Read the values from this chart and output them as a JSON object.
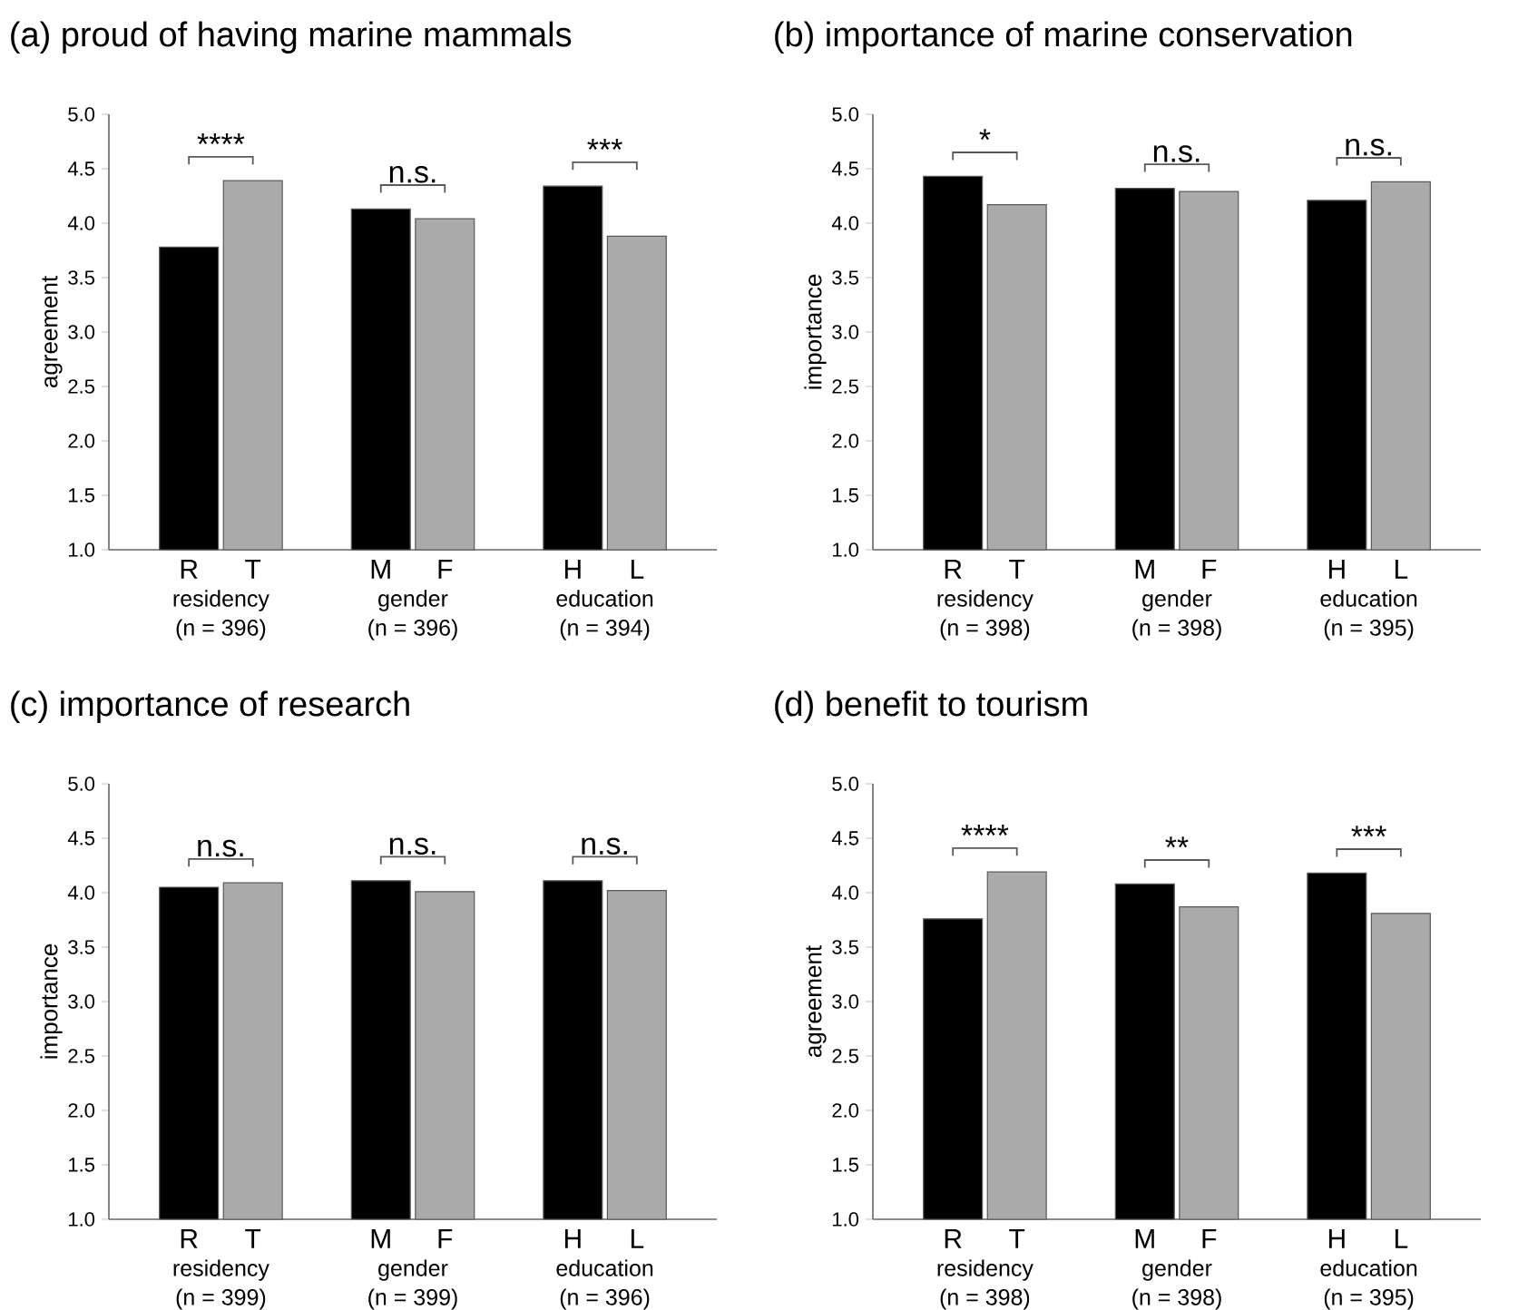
{
  "chart_data": [
    {
      "type": "bar",
      "title": "(a) proud of having marine mammals",
      "ylabel": "agreement",
      "categories": [
        "R",
        "T",
        null,
        "M",
        "F",
        null,
        "H",
        "L"
      ],
      "values": [
        3.78,
        4.39,
        null,
        4.13,
        4.04,
        null,
        4.34,
        3.88
      ],
      "colors": [
        "#000000",
        "#aaaaaa",
        null,
        "#000000",
        "#aaaaaa",
        null,
        "#000000",
        "#aaaaaa"
      ],
      "ylim": [
        1,
        5
      ],
      "yticks": [
        {
          "value": 1,
          "label": "1.0"
        },
        {
          "value": 1.5,
          "label": "1.5"
        },
        {
          "value": 2,
          "label": "2.0"
        },
        {
          "value": 2.5,
          "label": "2.5"
        },
        {
          "value": 3,
          "label": "3.0"
        },
        {
          "value": 3.5,
          "label": "3.5"
        },
        {
          "value": 4,
          "label": "4.0"
        },
        {
          "value": 4.5,
          "label": "4.5"
        },
        {
          "value": 5,
          "label": "5.0"
        }
      ],
      "annotations": [
        "****",
        "residency",
        "(n = 396)",
        "n.s.",
        "gender",
        "(n = 396)",
        "***",
        "education",
        "(n = 394)"
      ]
    },
    {
      "type": "bar",
      "title": "(b) importance of marine conservation",
      "ylabel": "importance",
      "categories": [
        "R",
        "T",
        null,
        "M",
        "F",
        null,
        "H",
        "L"
      ],
      "values": [
        4.43,
        4.17,
        null,
        4.32,
        4.29,
        null,
        4.21,
        4.38
      ],
      "colors": [
        "#000000",
        "#aaaaaa",
        null,
        "#000000",
        "#aaaaaa",
        null,
        "#000000",
        "#aaaaaa"
      ],
      "ylim": [
        1,
        5
      ],
      "yticks": [
        {
          "value": 1,
          "label": "1.0"
        },
        {
          "value": 1.5,
          "label": "1.5"
        },
        {
          "value": 2,
          "label": "2.0"
        },
        {
          "value": 2.5,
          "label": "2.5"
        },
        {
          "value": 3,
          "label": "3.0"
        },
        {
          "value": 3.5,
          "label": "3.5"
        },
        {
          "value": 4,
          "label": "4.0"
        },
        {
          "value": 4.5,
          "label": "4.5"
        },
        {
          "value": 5,
          "label": "5.0"
        }
      ],
      "annotations": [
        "*",
        "residency",
        "(n = 398)",
        "n.s.",
        "gender",
        "(n = 398)",
        "n.s.",
        "education",
        "(n = 395)"
      ]
    },
    {
      "type": "bar",
      "title": "(c) importance of research",
      "ylabel": "importance",
      "categories": [
        "R",
        "T",
        null,
        "M",
        "F",
        null,
        "H",
        "L"
      ],
      "values": [
        4.05,
        4.09,
        null,
        4.11,
        4.01,
        null,
        4.11,
        4.02
      ],
      "colors": [
        "#000000",
        "#aaaaaa",
        null,
        "#000000",
        "#aaaaaa",
        null,
        "#000000",
        "#aaaaaa"
      ],
      "ylim": [
        1,
        5
      ],
      "yticks": [
        {
          "value": 1,
          "label": "1.0"
        },
        {
          "value": 1.5,
          "label": "1.5"
        },
        {
          "value": 2,
          "label": "2.0"
        },
        {
          "value": 2.5,
          "label": "2.5"
        },
        {
          "value": 3,
          "label": "3.0"
        },
        {
          "value": 3.5,
          "label": "3.5"
        },
        {
          "value": 4,
          "label": "4.0"
        },
        {
          "value": 4.5,
          "label": "4.5"
        },
        {
          "value": 5,
          "label": "5.0"
        }
      ],
      "annotations": [
        "n.s.",
        "residency",
        "(n = 399)",
        "n.s.",
        "gender",
        "(n = 399)",
        "n.s.",
        "education",
        "(n = 396)"
      ]
    },
    {
      "type": "bar",
      "title": "(d) benefit to tourism",
      "ylabel": "agreement",
      "categories": [
        "R",
        "T",
        null,
        "M",
        "F",
        null,
        "H",
        "L"
      ],
      "values": [
        3.76,
        4.19,
        null,
        4.08,
        3.87,
        null,
        4.18,
        3.81
      ],
      "colors": [
        "#000000",
        "#aaaaaa",
        null,
        "#000000",
        "#aaaaaa",
        null,
        "#000000",
        "#aaaaaa"
      ],
      "ylim": [
        1,
        5
      ],
      "yticks": [
        {
          "value": 1,
          "label": "1.0"
        },
        {
          "value": 1.5,
          "label": "1.5"
        },
        {
          "value": 2,
          "label": "2.0"
        },
        {
          "value": 2.5,
          "label": "2.5"
        },
        {
          "value": 3,
          "label": "3.0"
        },
        {
          "value": 3.5,
          "label": "3.5"
        },
        {
          "value": 4,
          "label": "4.0"
        },
        {
          "value": 4.5,
          "label": "4.5"
        },
        {
          "value": 5,
          "label": "5.0"
        }
      ],
      "annotations": [
        "****",
        "residency",
        "(n = 398)",
        "**",
        "gender",
        "(n = 398)",
        "***",
        "education",
        "(n = 395)"
      ]
    }
  ]
}
